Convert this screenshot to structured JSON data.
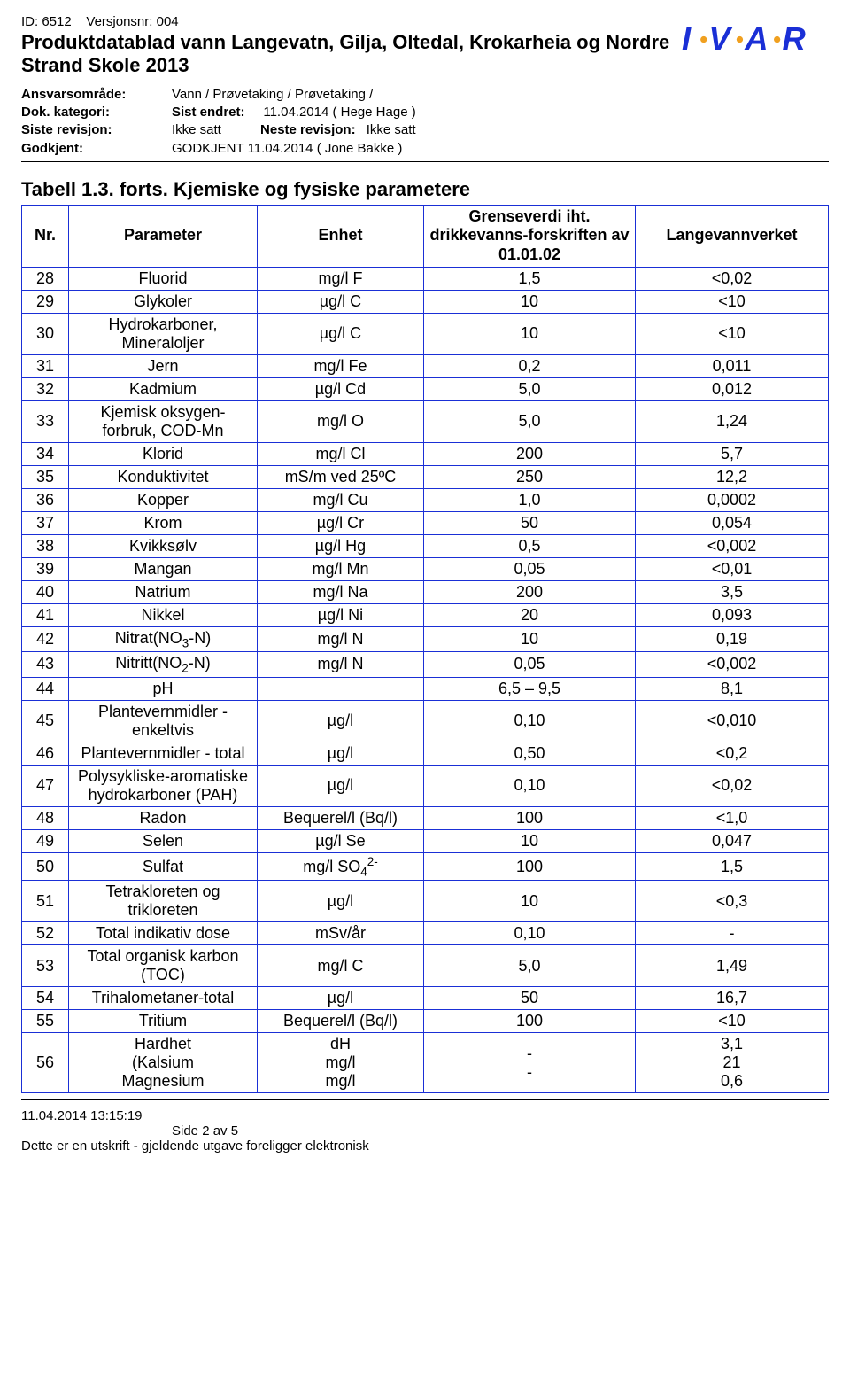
{
  "header": {
    "id_prefix": "ID: ",
    "id": "6512",
    "version_prefix": "Versjonsnr: ",
    "version": "004",
    "title": "Produktdatablad vann Langevatn, Gilja, Oltedal, Krokarheia og Nordre Strand Skole 2013"
  },
  "meta": {
    "ansvar_label": "Ansvarsområde:",
    "ansvar_value": "Vann / Prøvetaking / Prøvetaking /",
    "dok_label": "Dok. kategori:",
    "dok_value": "",
    "endret_label": "Sist endret:",
    "endret_value": "11.04.2014 ( Hege Hage )",
    "siste_label": "Siste revisjon:",
    "siste_value": "Ikke satt",
    "neste_label": "Neste revisjon:",
    "neste_value": "Ikke satt",
    "godkjent_label": "Godkjent:",
    "godkjent_value": "GODKJENT 11.04.2014 ( Jone Bakke )"
  },
  "logo": {
    "letters": [
      "I",
      "V",
      "A",
      "R"
    ],
    "letter_color": "#1a2fd6",
    "dot_color": "#f0a020"
  },
  "table": {
    "title": "Tabell 1.3. forts. Kjemiske og fysiske parametere",
    "border_color": "#1a2fd6",
    "font_size": 18,
    "header": {
      "nr": "Nr.",
      "parameter": "Parameter",
      "enhet": "Enhet",
      "grense": "Grenseverdi iht. drikkevanns-forskriften av 01.01.02",
      "verket": "Langevannverket"
    },
    "rows": [
      {
        "nr": "28",
        "param": "Fluorid",
        "unit": "mg/l F",
        "limit": "1,5",
        "val": "<0,02"
      },
      {
        "nr": "29",
        "param": "Glykoler",
        "unit": "µg/l C",
        "limit": "10",
        "val": "<10"
      },
      {
        "nr": "30",
        "param": "Hydrokarboner, Mineraloljer",
        "unit": "µg/l C",
        "limit": "10",
        "val": "<10"
      },
      {
        "nr": "31",
        "param": "Jern",
        "unit": "mg/l Fe",
        "limit": "0,2",
        "val": "0,011"
      },
      {
        "nr": "32",
        "param": "Kadmium",
        "unit": "µg/l Cd",
        "limit": "5,0",
        "val": "0,012"
      },
      {
        "nr": "33",
        "param": "Kjemisk oksygen-forbruk, COD-Mn",
        "unit": "mg/l O",
        "limit": "5,0",
        "val": "1,24"
      },
      {
        "nr": "34",
        "param": "Klorid",
        "unit": "mg/l Cl",
        "limit": "200",
        "val": "5,7"
      },
      {
        "nr": "35",
        "param": "Konduktivitet",
        "unit": "mS/m ved 25ºC",
        "limit": "250",
        "val": "12,2"
      },
      {
        "nr": "36",
        "param": "Kopper",
        "unit": "mg/l Cu",
        "limit": "1,0",
        "val": "0,0002"
      },
      {
        "nr": "37",
        "param": "Krom",
        "unit": "µg/l Cr",
        "limit": "50",
        "val": "0,054"
      },
      {
        "nr": "38",
        "param": "Kvikksølv",
        "unit": "µg/l Hg",
        "limit": "0,5",
        "val": "<0,002"
      },
      {
        "nr": "39",
        "param": "Mangan",
        "unit": "mg/l Mn",
        "limit": "0,05",
        "val": "<0,01"
      },
      {
        "nr": "40",
        "param": "Natrium",
        "unit": "mg/l Na",
        "limit": "200",
        "val": "3,5"
      },
      {
        "nr": "41",
        "param": "Nikkel",
        "unit": "µg/l Ni",
        "limit": "20",
        "val": "0,093"
      },
      {
        "nr": "42",
        "param_html": "Nitrat(NO<span class=\"sub\">3</span>-N)",
        "unit": "mg/l N",
        "limit": "10",
        "val": "0,19"
      },
      {
        "nr": "43",
        "param_html": "Nitritt(NO<span class=\"sub\">2</span>-N)",
        "unit": "mg/l N",
        "limit": "0,05",
        "val": "<0,002"
      },
      {
        "nr": "44",
        "param": "pH",
        "unit": "",
        "limit": "6,5 – 9,5",
        "val": "8,1"
      },
      {
        "nr": "45",
        "param": "Plantevernmidler - enkeltvis",
        "unit": "µg/l",
        "limit": "0,10",
        "val": "<0,010"
      },
      {
        "nr": "46",
        "param": "Plantevernmidler - total",
        "unit": "µg/l",
        "limit": "0,50",
        "val": "<0,2"
      },
      {
        "nr": "47",
        "param": "Polysykliske-aromatiske hydrokarboner (PAH)",
        "unit": "µg/l",
        "limit": "0,10",
        "val": "<0,02"
      },
      {
        "nr": "48",
        "param": "Radon",
        "unit": "Bequerel/l (Bq/l)",
        "limit": "100",
        "val": "<1,0"
      },
      {
        "nr": "49",
        "param": "Selen",
        "unit": "µg/l Se",
        "limit": "10",
        "val": "0,047"
      },
      {
        "nr": "50",
        "param": "Sulfat",
        "unit_html": "mg/l SO<span class=\"sub\">4</span><span class=\"sup\">2-</span>",
        "limit": "100",
        "val": "1,5"
      },
      {
        "nr": "51",
        "param": "Tetrakloreten og trikloreten",
        "unit": "µg/l",
        "limit": "10",
        "val": "<0,3"
      },
      {
        "nr": "52",
        "param": "Total indikativ dose",
        "unit": "mSv/år",
        "limit": "0,10",
        "val": "-"
      },
      {
        "nr": "53",
        "param": "Total organisk karbon (TOC)",
        "unit": "mg/l C",
        "limit": "5,0",
        "val": "1,49"
      },
      {
        "nr": "54",
        "param": "Trihalometaner-total",
        "unit": "µg/l",
        "limit": "50",
        "val": "16,7"
      },
      {
        "nr": "55",
        "param": "Tritium",
        "unit": "Bequerel/l (Bq/l)",
        "limit": "100",
        "val": "<10"
      },
      {
        "nr": "56",
        "param_html": "Hardhet<br>(Kalsium<br>Magnesium",
        "unit_html": "dH<br>mg/l<br>mg/l",
        "limit_html": "-<br>-",
        "val_html": "3,1<br>21<br>0,6"
      }
    ]
  },
  "footer": {
    "timestamp": "11.04.2014 13:15:19",
    "page": "Side 2 av 5",
    "note": "Dette er en utskrift - gjeldende utgave foreligger elektronisk"
  }
}
